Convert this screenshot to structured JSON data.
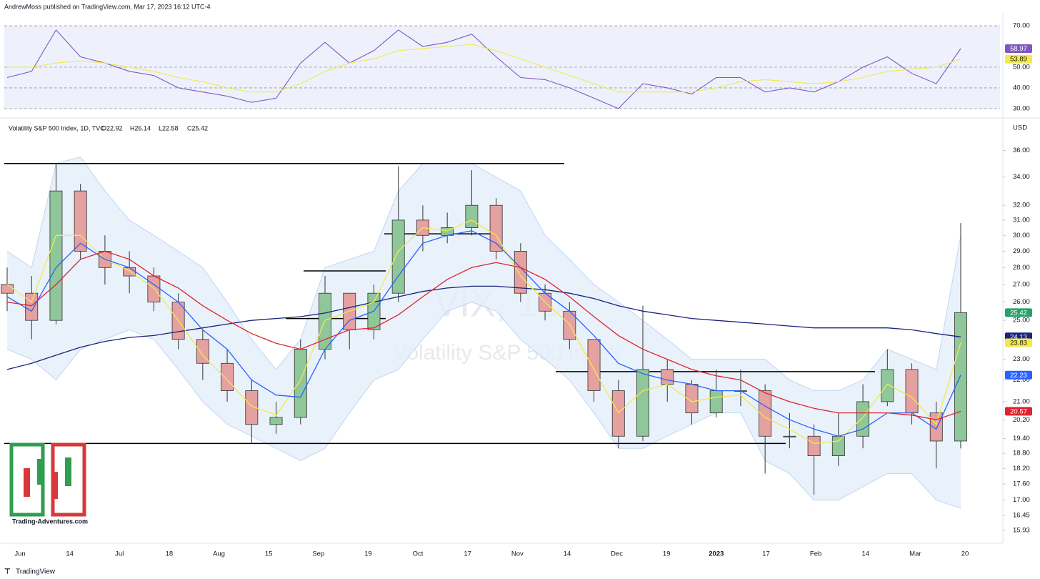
{
  "header": {
    "published": "AndrewMoss published on TradingView.com, Mar 17, 2023 16:12 UTC-4"
  },
  "chart_data": [
    {
      "type": "line",
      "ylim": [
        27.2,
        72.1
      ],
      "yticks": [
        {
          "value": 30,
          "label": "30.00"
        },
        {
          "value": 40,
          "label": "40.00"
        },
        {
          "value": 50,
          "label": "50.00"
        },
        {
          "value": 70,
          "label": "70.00"
        }
      ],
      "series": [
        {
          "name": "RSI",
          "color": "#7e57c2",
          "values": [
            45,
            48,
            68,
            55,
            52,
            48,
            46,
            40,
            38,
            36,
            33,
            35,
            52,
            62,
            52,
            58,
            68,
            60,
            62,
            66,
            55,
            45,
            44,
            40,
            35,
            30,
            42,
            40,
            37,
            45,
            45,
            38,
            40,
            38,
            43,
            50,
            55,
            47,
            42,
            58.97
          ]
        },
        {
          "name": "RSI MA",
          "color": "#f2e94e",
          "values": [
            50,
            50,
            52,
            53,
            52,
            50,
            48,
            45,
            43,
            40,
            38,
            38,
            42,
            48,
            52,
            54,
            58,
            59,
            60,
            61,
            58,
            54,
            50,
            46,
            42,
            38,
            38,
            38,
            38,
            40,
            43,
            44,
            43,
            42,
            43,
            45,
            48,
            49,
            50,
            53.89
          ]
        }
      ]
    },
    {
      "type": "candlestick",
      "log": true,
      "ylim": [
        15.86,
        38.3
      ],
      "unit": "USD",
      "title": "Volatility S&P 500 Index, 1D, TVC",
      "legend_values": [
        "O22.92",
        "H26.14",
        "L22.58",
        "C25.42"
      ],
      "watermark": [
        "VIX, 1D",
        "Volatility S&P 500 Index"
      ],
      "yticks": [
        {
          "value": 15.93,
          "label": "15.93"
        },
        {
          "value": 16.45,
          "label": "16.45"
        },
        {
          "value": 17,
          "label": "17.00"
        },
        {
          "value": 17.6,
          "label": "17.60"
        },
        {
          "value": 18.2,
          "label": "18.20"
        },
        {
          "value": 18.8,
          "label": "18.80"
        },
        {
          "value": 19.4,
          "label": "19.40"
        },
        {
          "value": 20.2,
          "label": "20.20"
        },
        {
          "value": 21,
          "label": "21.00"
        },
        {
          "value": 22,
          "label": "22.00"
        },
        {
          "value": 23,
          "label": "23.00"
        },
        {
          "value": 25,
          "label": "25.00"
        },
        {
          "value": 26,
          "label": "26.00"
        },
        {
          "value": 27,
          "label": "27.00"
        },
        {
          "value": 28,
          "label": "28.00"
        },
        {
          "value": 29,
          "label": "29.00"
        },
        {
          "value": 30,
          "label": "30.00"
        },
        {
          "value": 31,
          "label": "31.00"
        },
        {
          "value": 32,
          "label": "32.00"
        },
        {
          "value": 34,
          "label": "34.00"
        },
        {
          "value": 36,
          "label": "36.00"
        }
      ],
      "x_axis_labels": [
        "Jun",
        "14",
        "Jul",
        "18",
        "Aug",
        "15",
        "Sep",
        "19",
        "Oct",
        "17",
        "Nov",
        "14",
        "Dec",
        "19",
        "2023",
        "17",
        "Feb",
        "14",
        "Mar",
        "20"
      ],
      "up_color": "#8fc79a",
      "down_color": "#e5a0a0",
      "open": [
        27,
        26.5,
        25,
        33,
        29,
        28,
        27.5,
        26,
        24,
        22.8,
        21.5,
        20,
        20.3,
        23.5,
        26.5,
        24.5,
        26.5,
        31,
        30,
        30.5,
        32,
        29,
        26.5,
        25.5,
        24,
        21.5,
        19.5,
        22.5,
        21.8,
        20.5,
        21.5,
        21.5,
        19.5,
        19.5,
        18.7,
        19.5,
        21,
        22.5,
        20.5,
        19.3
      ],
      "high": [
        28,
        27.5,
        35,
        33.5,
        30,
        29,
        28,
        26.5,
        24.5,
        23.5,
        22,
        21,
        24,
        27.5,
        26.5,
        27,
        34.8,
        32,
        31.5,
        34.5,
        32.5,
        29.5,
        27,
        26,
        24,
        22,
        25.8,
        23,
        22,
        22.5,
        22.5,
        21.8,
        20.5,
        20,
        20.5,
        21.8,
        23.5,
        22.8,
        21,
        30.8
      ],
      "low": [
        25.5,
        24,
        24.8,
        28.5,
        27,
        26.5,
        25.5,
        23.5,
        22,
        21,
        19.2,
        19.6,
        20,
        23,
        23.5,
        24,
        26,
        29,
        29.5,
        30,
        28.5,
        26,
        25,
        23.5,
        21,
        19,
        19.3,
        21,
        20,
        20.3,
        20.8,
        18,
        19,
        17.2,
        18.3,
        19,
        20.8,
        20,
        18.2,
        19
      ],
      "close": [
        26.5,
        25,
        33,
        29,
        28,
        27.5,
        26,
        24,
        22.8,
        21.5,
        20,
        20.3,
        23.5,
        26.5,
        24.5,
        26.5,
        31,
        30,
        30.5,
        32,
        29,
        26.5,
        25.5,
        24,
        21.5,
        19.5,
        22.5,
        21.8,
        20.5,
        21.5,
        21.5,
        19.5,
        19.5,
        18.7,
        19.5,
        21,
        22.5,
        20.5,
        19.3,
        25.42
      ],
      "bands": {
        "color": "#b3cff0",
        "upper": [
          29,
          28,
          35,
          35.5,
          33,
          31,
          30,
          29,
          28,
          26,
          24,
          22.5,
          24,
          28,
          28.5,
          29,
          33,
          35,
          35,
          35,
          34,
          33,
          30,
          28.5,
          27,
          26,
          25,
          24,
          23,
          23,
          23,
          23,
          22,
          21.5,
          21.5,
          22,
          23.5,
          23,
          22.5,
          30
        ],
        "lower": [
          23.5,
          23,
          22,
          23.5,
          24,
          24.5,
          24,
          22.5,
          21,
          20,
          19.5,
          19,
          18.5,
          19,
          20.5,
          22,
          22.5,
          24,
          25.5,
          26,
          25.5,
          24,
          23,
          22,
          20.5,
          19,
          19,
          19.5,
          20,
          20.5,
          20.5,
          18.5,
          18,
          17,
          17,
          17.5,
          18,
          18,
          17,
          16.7
        ]
      },
      "series": [
        {
          "name": "MA 200",
          "color": "#1a237e",
          "values": [
            22.5,
            22.8,
            23.2,
            23.6,
            23.9,
            24.1,
            24.2,
            24.4,
            24.6,
            24.8,
            25,
            25.1,
            25.2,
            25.4,
            25.7,
            26,
            26.3,
            26.6,
            26.8,
            26.9,
            26.9,
            26.8,
            26.7,
            26.5,
            26.2,
            25.8,
            25.5,
            25.3,
            25.1,
            25,
            24.9,
            24.8,
            24.7,
            24.6,
            24.6,
            24.6,
            24.6,
            24.5,
            24.3,
            24.13
          ]
        },
        {
          "name": "MA short",
          "color": "#f2e94e",
          "values": [
            27,
            26,
            30,
            30,
            28.5,
            27.8,
            26.8,
            25,
            23.2,
            22,
            20.8,
            20.4,
            22,
            25,
            25.5,
            26,
            29,
            30.5,
            30.3,
            31,
            30,
            27.5,
            26,
            24.8,
            22.5,
            20.5,
            21.5,
            21.8,
            21,
            21.2,
            21.3,
            20.3,
            19.8,
            19.2,
            19.3,
            20.3,
            21.8,
            21.2,
            20,
            23.83
          ]
        },
        {
          "name": "MA 20",
          "color": "#2962ff",
          "values": [
            26.3,
            25.5,
            28,
            29.5,
            28.5,
            28,
            27,
            26,
            24.5,
            23.5,
            22,
            21.3,
            21.2,
            23.5,
            25,
            25.5,
            27.5,
            29.5,
            30,
            30.3,
            29.5,
            28,
            26.5,
            25.5,
            24.2,
            22.8,
            22.3,
            22,
            21.8,
            21.5,
            21.5,
            20.8,
            20.2,
            19.8,
            19.5,
            19.8,
            20.5,
            20.5,
            19.8,
            22.23
          ]
        },
        {
          "name": "MA 50",
          "color": "#e0232e",
          "values": [
            26,
            25.8,
            27,
            28.5,
            29,
            28.5,
            27.5,
            26.8,
            25.8,
            25,
            24.3,
            23.8,
            23.5,
            24,
            24.5,
            24.6,
            25.3,
            26.3,
            27.3,
            28,
            28.3,
            28,
            27.3,
            26.3,
            25.2,
            24.2,
            23.5,
            23,
            22.5,
            22.2,
            22,
            21.4,
            21,
            20.7,
            20.5,
            20.5,
            20.5,
            20.4,
            20.2,
            20.57
          ]
        }
      ],
      "levels": [
        35,
        30.1,
        27.8,
        25.1,
        22.4,
        19.2
      ]
    }
  ],
  "logo": {
    "text": "Trading-Adventures.com"
  },
  "footer": {
    "brand": "TradingView"
  }
}
